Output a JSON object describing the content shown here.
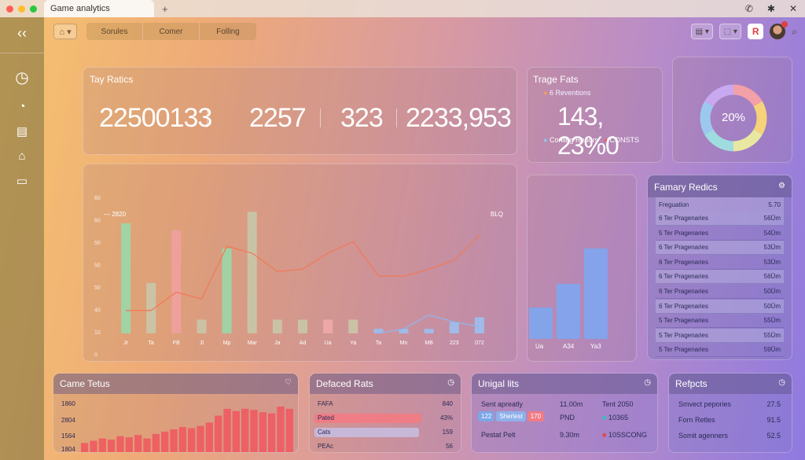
{
  "window": {
    "tab_title": "Game analytics",
    "new_tab": "+",
    "dot_colors": [
      "#ff5f57",
      "#febc2e",
      "#28c840"
    ]
  },
  "sidebar": {
    "back_icon": "chevron-left-icon",
    "items": [
      "clock-icon",
      "gauge-icon",
      "clipboard-icon",
      "home-icon",
      "folder-icon"
    ]
  },
  "topbar": {
    "home_label": "⌂ ▾",
    "segments": [
      "Sorules",
      "Comer",
      "Folling"
    ]
  },
  "top_stats": {
    "title": "Tay Ratics",
    "values": [
      "22500133",
      "2257",
      "323",
      "2233,953"
    ]
  },
  "trage": {
    "title": "Trage Fats",
    "legend_top": "6 Reventions",
    "value": "143, 23%0",
    "legend_bottom_left": "Conling Repors",
    "legend_bottom_right": "CONSTS"
  },
  "donut": {
    "label": "20%",
    "colors": [
      "#f3a0a8",
      "#f6d27a",
      "#e9e8a0",
      "#9fdce0",
      "#9cc8f0",
      "#c8a8f0"
    ]
  },
  "main_chart": {
    "y_ticks": [
      "60",
      "60",
      "50",
      "50",
      "50",
      "40",
      "10",
      "0"
    ],
    "left_label": "2820",
    "right_label": "BLQ",
    "x_labels": [
      "Jr",
      "Ta",
      "FB",
      "Jl",
      "Mp",
      "Mar",
      "Ja",
      "Ad",
      "Ua",
      "Ya",
      "Ta",
      "Mn",
      "MB",
      "223",
      "072"
    ]
  },
  "chart_data": {
    "type": "bar",
    "categories": [
      "Jr",
      "Ta",
      "FB",
      "Jl",
      "Mp",
      "Mar",
      "Ja",
      "Ad",
      "Ua",
      "Ya",
      "Ta",
      "Mn",
      "MB",
      "223",
      "072"
    ],
    "series": [
      {
        "values": [
          48,
          22,
          45,
          6,
          37,
          53,
          6,
          6,
          6,
          6,
          2,
          2,
          2,
          5,
          7
        ]
      }
    ],
    "lines": [
      {
        "values": [
          10,
          10,
          18,
          15,
          38,
          35,
          27,
          28,
          35,
          40,
          25,
          25,
          28,
          32,
          43
        ]
      },
      {
        "values": [
          null,
          null,
          null,
          null,
          null,
          null,
          null,
          null,
          null,
          null,
          0,
          2,
          8,
          5,
          3
        ]
      }
    ],
    "ylim": [
      0,
      60
    ]
  },
  "mini_bars": {
    "x_labels": [
      "Ua",
      "A34",
      "Ya3"
    ],
    "values": [
      40,
      70,
      115
    ]
  },
  "family": {
    "title": "Famary Redics",
    "head_left": "Freguation",
    "head_right": "5.70",
    "rows": [
      {
        "label": "6 Ter Pragenaries",
        "value": "56Ūm"
      },
      {
        "label": "5 Ter Pragenaries",
        "value": "54Ūm"
      },
      {
        "label": "6 Ter Pragenaries",
        "value": "53Ūm"
      },
      {
        "label": "6 Ter Pragenaries",
        "value": "53Ūm"
      },
      {
        "label": "6 Ter Pragenaries",
        "value": "56Ūm"
      },
      {
        "label": "6 Ter Pragenaries",
        "value": "50Ūm"
      },
      {
        "label": "6 Ter Pragenaries",
        "value": "50Ūm"
      },
      {
        "label": "5 Ter Pragenaries",
        "value": "55Ūm"
      },
      {
        "label": "5 Ter Pragenaries",
        "value": "55Ūm"
      },
      {
        "label": "5 Ter Pragenaries",
        "value": "59Ūm"
      }
    ]
  },
  "game_tetus": {
    "title": "Came Tetus",
    "y_labels": [
      "1860",
      "2804",
      "1564",
      "1804"
    ],
    "bar_values": [
      8,
      10,
      12,
      11,
      14,
      13,
      15,
      12,
      16,
      18,
      20,
      22,
      21,
      23,
      26,
      32,
      38,
      36,
      38,
      37,
      35,
      34,
      40,
      38
    ]
  },
  "defaced": {
    "title": "Defaced Rats",
    "rows": [
      {
        "label": "FAFA",
        "value": "840",
        "fill": 0,
        "color": ""
      },
      {
        "label": "Pated",
        "value": "43%",
        "fill": 0.88,
        "color": "#ef7d86"
      },
      {
        "label": "Cats",
        "value": "159",
        "fill": 0.86,
        "color": "#c8b8d8"
      },
      {
        "label": "PEAc",
        "value": "56",
        "fill": 0,
        "color": ""
      }
    ]
  },
  "unigal": {
    "title": "Unigal lits",
    "r1": {
      "a": "Sent apreatly",
      "b": "11.00m",
      "c": "Tent 2050"
    },
    "r2": {
      "tags": [
        "122",
        "Sherlest",
        "170"
      ],
      "b": "PND",
      "c": "10365"
    },
    "r3": {
      "a": "Pestat Pelt",
      "b": "9.30m",
      "c": "10SSCONG"
    }
  },
  "reports": {
    "title": "Refpcts",
    "rows": [
      {
        "label": "Smvect pepories",
        "value": "27.5"
      },
      {
        "label": "Forn Retles",
        "value": "91.5"
      },
      {
        "label": "Somit agenners",
        "value": "52.5"
      }
    ]
  }
}
